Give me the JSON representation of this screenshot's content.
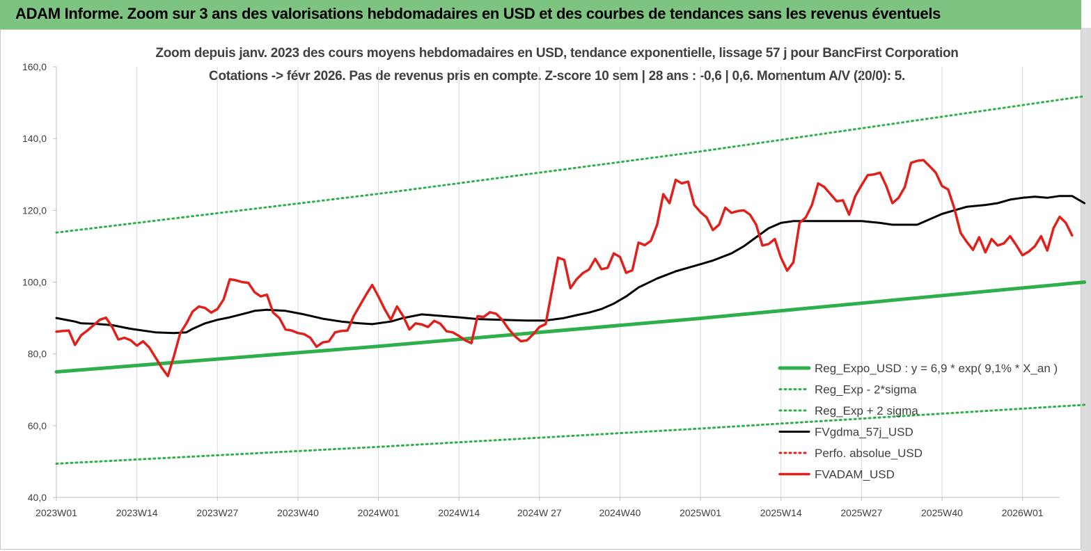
{
  "header": {
    "title": "ADAM Informe. Zoom sur 3 ans des valorisations hebdomadaires en USD et des courbes de tendances sans les revenus éventuels"
  },
  "chart_data": {
    "type": "line",
    "title": "Zoom depuis janv. 2023 des cours moyens hebdomadaires en USD, tendance exponentielle, lissage 57 j pour BancFirst Corporation",
    "subtitle": "Cotations -> févr 2026.  Pas de revenus pris en compte. Z-score 10 sem  | 28 ans : -0,6 | 0,6. Momentum A/V (20/0): 5.",
    "xlabel": "",
    "ylabel": "",
    "ylim": [
      40,
      160
    ],
    "y_ticks": [
      "40,0",
      "60,0",
      "80,0",
      "100,0",
      "120,0",
      "140,0",
      "160,0"
    ],
    "x_range_weeks": [
      0,
      162
    ],
    "x_ticks": [
      {
        "label": "2023W01",
        "week": 0
      },
      {
        "label": "2023W14",
        "week": 13
      },
      {
        "label": "2023W27",
        "week": 26
      },
      {
        "label": "2023W40",
        "week": 39
      },
      {
        "label": "2024W01",
        "week": 52
      },
      {
        "label": "2024W14",
        "week": 65
      },
      {
        "label": "2024W 27",
        "week": 78
      },
      {
        "label": "2024W40",
        "week": 91
      },
      {
        "label": "2025W01",
        "week": 104
      },
      {
        "label": "2025W14",
        "week": 117
      },
      {
        "label": "2025W27",
        "week": 130
      },
      {
        "label": "2025W40",
        "week": 143
      },
      {
        "label": "2026W01",
        "week": 156
      }
    ],
    "grid": "vertical",
    "legend_position": "bottom-right",
    "series": [
      {
        "name": "Reg_Expo_USD : y = 6,9 * exp( 9,1% *  X_an )",
        "color": "#2db04b",
        "style": "solid-thick",
        "points": [
          [
            0,
            75.0
          ],
          [
            52,
            82.1
          ],
          [
            104,
            89.9
          ],
          [
            166,
            100.0
          ]
        ]
      },
      {
        "name": "Reg_Exp - 2*sigma",
        "color": "#2db04b",
        "style": "dotted",
        "points": [
          [
            0,
            49.4
          ],
          [
            52,
            54.1
          ],
          [
            104,
            59.2
          ],
          [
            166,
            65.8
          ]
        ]
      },
      {
        "name": "Reg_Exp + 2 sigma",
        "color": "#2db04b",
        "style": "dotted",
        "points": [
          [
            0,
            113.8
          ],
          [
            52,
            124.6
          ],
          [
            104,
            136.4
          ],
          [
            166,
            151.8
          ]
        ]
      },
      {
        "name": "FVgdma_57j_USD",
        "color": "#000000",
        "style": "solid",
        "points": [
          [
            0,
            90
          ],
          [
            3,
            89
          ],
          [
            4,
            88.5
          ],
          [
            6,
            88.4
          ],
          [
            9,
            88
          ],
          [
            12,
            87
          ],
          [
            16,
            86
          ],
          [
            19,
            85.8
          ],
          [
            21,
            86
          ],
          [
            22,
            87
          ],
          [
            24,
            88.5
          ],
          [
            26,
            89.5
          ],
          [
            28,
            90.2
          ],
          [
            31,
            91.5
          ],
          [
            32,
            92
          ],
          [
            34,
            92.3
          ],
          [
            37,
            92
          ],
          [
            40,
            91
          ],
          [
            43,
            89.8
          ],
          [
            46,
            89
          ],
          [
            49,
            88.5
          ],
          [
            51,
            88.3
          ],
          [
            54,
            89
          ],
          [
            56,
            90
          ],
          [
            59,
            91
          ],
          [
            62,
            90.6
          ],
          [
            65,
            90.2
          ],
          [
            68,
            89.7
          ],
          [
            72,
            89.5
          ],
          [
            76,
            89.3
          ],
          [
            79,
            89.3
          ],
          [
            82,
            90
          ],
          [
            84,
            90.8
          ],
          [
            86,
            91.5
          ],
          [
            88,
            92.5
          ],
          [
            90,
            94
          ],
          [
            92,
            96
          ],
          [
            94,
            98.5
          ],
          [
            97,
            101
          ],
          [
            100,
            103
          ],
          [
            103,
            104.5
          ],
          [
            106,
            106
          ],
          [
            109,
            108
          ],
          [
            111,
            110
          ],
          [
            113,
            112.5
          ],
          [
            115,
            115
          ],
          [
            117,
            116.5
          ],
          [
            119,
            117
          ],
          [
            121,
            117
          ],
          [
            124,
            117
          ],
          [
            127,
            117
          ],
          [
            130,
            117
          ],
          [
            133,
            116.5
          ],
          [
            135,
            116
          ],
          [
            137,
            116
          ],
          [
            139,
            116
          ],
          [
            141,
            117.5
          ],
          [
            143,
            119
          ],
          [
            145,
            120
          ],
          [
            147,
            121
          ],
          [
            150,
            121.5
          ],
          [
            152,
            122
          ],
          [
            154,
            123
          ],
          [
            156,
            123.5
          ],
          [
            158,
            123.8
          ],
          [
            160,
            123.5
          ],
          [
            162,
            124
          ],
          [
            164,
            124
          ],
          [
            166,
            122
          ]
        ]
      },
      {
        "name": "Perfo. absolue_USD",
        "color": "#e0201b",
        "style": "dotted",
        "points": []
      },
      {
        "name": "FVADAM_USD",
        "color": "#e0201b",
        "style": "solid-thick",
        "points": [
          [
            0,
            86.2
          ],
          [
            1,
            86.4
          ],
          [
            2,
            86.5
          ],
          [
            3,
            82.5
          ],
          [
            4,
            85.2
          ],
          [
            5,
            86.5
          ],
          [
            6,
            88
          ],
          [
            7,
            89.5
          ],
          [
            8,
            90.1
          ],
          [
            9,
            87.5
          ],
          [
            10,
            84
          ],
          [
            11,
            84.5
          ],
          [
            12,
            83.8
          ],
          [
            13,
            82.3
          ],
          [
            14,
            83.5
          ],
          [
            15,
            81.8
          ],
          [
            16,
            79
          ],
          [
            17,
            76.2
          ],
          [
            18,
            73.8
          ],
          [
            19,
            79.5
          ],
          [
            20,
            85.8
          ],
          [
            21,
            88.5
          ],
          [
            22,
            91.8
          ],
          [
            23,
            93.2
          ],
          [
            24,
            92.8
          ],
          [
            25,
            91.5
          ],
          [
            26,
            92.5
          ],
          [
            27,
            95.2
          ],
          [
            28,
            100.8
          ],
          [
            29,
            100.5
          ],
          [
            30,
            100
          ],
          [
            31,
            99.8
          ],
          [
            32,
            97.2
          ],
          [
            33,
            96
          ],
          [
            34,
            96.5
          ],
          [
            35,
            91.5
          ],
          [
            36,
            90
          ],
          [
            37,
            86.8
          ],
          [
            38,
            86.5
          ],
          [
            39,
            85.8
          ],
          [
            40,
            85.5
          ],
          [
            41,
            84.5
          ],
          [
            42,
            82
          ],
          [
            43,
            83.2
          ],
          [
            44,
            83.5
          ],
          [
            45,
            86
          ],
          [
            46,
            86.4
          ],
          [
            47,
            86.5
          ],
          [
            48,
            90.5
          ],
          [
            49,
            93.5
          ],
          [
            50,
            96.5
          ],
          [
            51,
            99.2
          ],
          [
            52,
            96
          ],
          [
            53,
            92.5
          ],
          [
            54,
            89.5
          ],
          [
            55,
            93.2
          ],
          [
            56,
            90.5
          ],
          [
            57,
            86.8
          ],
          [
            58,
            88.5
          ],
          [
            59,
            88.2
          ],
          [
            60,
            87.5
          ],
          [
            61,
            89.2
          ],
          [
            62,
            88.4
          ],
          [
            63,
            86.3
          ],
          [
            64,
            86
          ],
          [
            65,
            85
          ],
          [
            66,
            83.8
          ],
          [
            67,
            83
          ],
          [
            68,
            90.5
          ],
          [
            69,
            90.3
          ],
          [
            70,
            91.6
          ],
          [
            71,
            91.2
          ],
          [
            72,
            89.5
          ],
          [
            73,
            87
          ],
          [
            74,
            85
          ],
          [
            75,
            83.5
          ],
          [
            76,
            83.8
          ],
          [
            77,
            85.5
          ],
          [
            78,
            87.5
          ],
          [
            79,
            88.3
          ],
          [
            80,
            97.5
          ],
          [
            81,
            106.8
          ],
          [
            82,
            106.2
          ],
          [
            83,
            98.3
          ],
          [
            84,
            100.8
          ],
          [
            85,
            102.5
          ],
          [
            86,
            103.5
          ],
          [
            87,
            106.5
          ],
          [
            88,
            103.6
          ],
          [
            89,
            104
          ],
          [
            90,
            108
          ],
          [
            91,
            107
          ],
          [
            92,
            102.6
          ],
          [
            93,
            103.3
          ],
          [
            94,
            111
          ],
          [
            95,
            110.3
          ],
          [
            96,
            111.5
          ],
          [
            97,
            116
          ],
          [
            98,
            124.5
          ],
          [
            99,
            122
          ],
          [
            100,
            128.5
          ],
          [
            101,
            127.5
          ],
          [
            102,
            128
          ],
          [
            103,
            121.5
          ],
          [
            104,
            119.5
          ],
          [
            105,
            118
          ],
          [
            106,
            114.5
          ],
          [
            107,
            116
          ],
          [
            108,
            120.7
          ],
          [
            109,
            119.3
          ],
          [
            110,
            119.8
          ],
          [
            111,
            120
          ],
          [
            112,
            118.8
          ],
          [
            113,
            116
          ],
          [
            114,
            110.2
          ],
          [
            115,
            110.6
          ],
          [
            116,
            112
          ],
          [
            117,
            106.8
          ],
          [
            118,
            103.2
          ],
          [
            119,
            105.5
          ],
          [
            120,
            116.5
          ],
          [
            121,
            118
          ],
          [
            122,
            121.5
          ],
          [
            123,
            127.5
          ],
          [
            124,
            126.5
          ],
          [
            125,
            124.5
          ],
          [
            126,
            122.5
          ],
          [
            127,
            122.8
          ],
          [
            128,
            118.8
          ],
          [
            129,
            124
          ],
          [
            130,
            127
          ],
          [
            131,
            129.8
          ],
          [
            132,
            130
          ],
          [
            133,
            130.5
          ],
          [
            134,
            126.8
          ],
          [
            135,
            122
          ],
          [
            136,
            123.5
          ],
          [
            137,
            126.5
          ],
          [
            138,
            133.2
          ],
          [
            139,
            133.8
          ],
          [
            140,
            134
          ],
          [
            141,
            132.3
          ],
          [
            142,
            130.5
          ],
          [
            143,
            126.8
          ],
          [
            144,
            125.8
          ],
          [
            145,
            120.5
          ],
          [
            146,
            113.7
          ],
          [
            147,
            111.2
          ],
          [
            148,
            109
          ],
          [
            149,
            112.5
          ],
          [
            150,
            108.3
          ],
          [
            151,
            112
          ],
          [
            152,
            110.2
          ],
          [
            153,
            110.8
          ],
          [
            154,
            112.8
          ],
          [
            155,
            110.3
          ],
          [
            156,
            107.5
          ],
          [
            157,
            108.5
          ],
          [
            158,
            110
          ],
          [
            159,
            112.8
          ],
          [
            160,
            108.8
          ],
          [
            161,
            115
          ],
          [
            162,
            118.2
          ],
          [
            163,
            116.5
          ],
          [
            164,
            113
          ]
        ]
      }
    ]
  }
}
